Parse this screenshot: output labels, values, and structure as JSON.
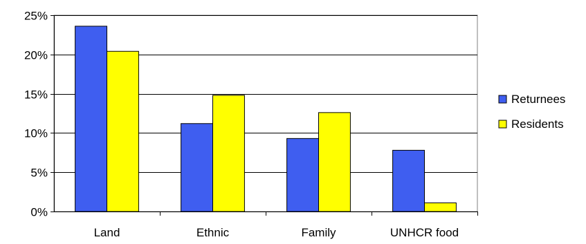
{
  "chart_data": {
    "type": "bar",
    "title": "",
    "xlabel": "",
    "ylabel": "",
    "categories": [
      "Land",
      "Ethnic",
      "Family",
      "UNHCR food"
    ],
    "series": [
      {
        "name": "Returnees",
        "values": [
          23.6,
          11.2,
          9.3,
          7.8
        ],
        "color": "#3f5ef0"
      },
      {
        "name": "Residents",
        "values": [
          20.4,
          14.8,
          12.6,
          1.1
        ],
        "color": "#ffff00"
      }
    ],
    "ylim": [
      0,
      25
    ],
    "yticks": [
      0,
      5,
      10,
      15,
      20,
      25
    ],
    "ytick_labels": [
      "0%",
      "5%",
      "10%",
      "15%",
      "20%",
      "25%"
    ],
    "grid": true,
    "legend": "right"
  }
}
